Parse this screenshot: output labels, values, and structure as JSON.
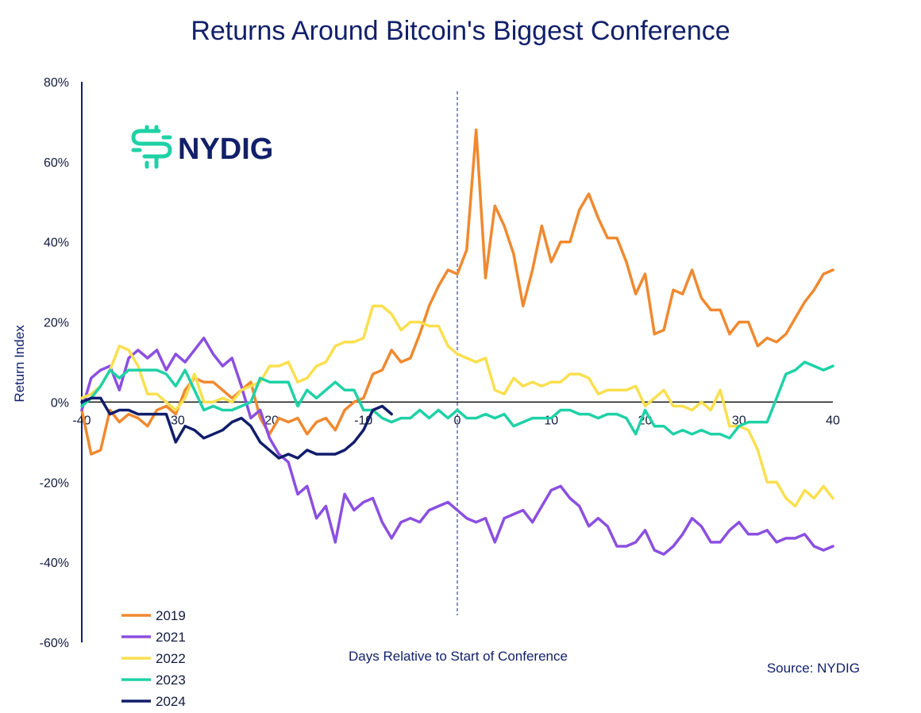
{
  "chart_data": {
    "type": "line",
    "title": "Returns Around Bitcoin's Biggest Conference",
    "xlabel": "Days Relative to Start of Conference",
    "ylabel": "Return Index",
    "xlim": [
      -40,
      40
    ],
    "ylim": [
      -60,
      80
    ],
    "x_ticks": [
      -40,
      -30,
      -20,
      -10,
      0,
      10,
      20,
      30,
      40
    ],
    "y_ticks": [
      80,
      60,
      40,
      20,
      0,
      -20,
      -40,
      -60
    ],
    "y_tick_labels": [
      "80%",
      "60%",
      "40%",
      "20%",
      "0%",
      "-20%",
      "-40%",
      "-60%"
    ],
    "reference_line_x": 0,
    "legend_position": "bottom-left",
    "source": "Source: NYDIG",
    "logo_text": "NYDIG",
    "series": [
      {
        "name": "2019",
        "color": "#f0892f",
        "x": [
          -40,
          -39,
          -38,
          -37,
          -36,
          -35,
          -34,
          -33,
          -32,
          -31,
          -30,
          -29,
          -28,
          -27,
          -26,
          -25,
          -24,
          -23,
          -22,
          -21,
          -20,
          -19,
          -18,
          -17,
          -16,
          -15,
          -14,
          -13,
          -12,
          -11,
          -10,
          -9,
          -8,
          -7,
          -6,
          -5,
          -4,
          -3,
          -2,
          -1,
          0,
          1,
          2,
          3,
          4,
          5,
          6,
          7,
          8,
          9,
          10,
          11,
          12,
          13,
          14,
          15,
          16,
          17,
          18,
          19,
          20,
          21,
          22,
          23,
          24,
          25,
          26,
          27,
          28,
          29,
          30,
          31,
          32,
          33,
          34,
          35,
          36,
          37,
          38,
          39,
          40
        ],
        "y": [
          -2,
          -13,
          -12,
          -2,
          -5,
          -3,
          -4,
          -6,
          -2,
          -1,
          -3,
          3,
          6,
          5,
          5,
          3,
          1,
          3,
          5,
          -4,
          -8,
          -4,
          -5,
          -4,
          -8,
          -5,
          -4,
          -7,
          -2,
          0,
          1,
          7,
          8,
          13,
          10,
          11,
          17,
          24,
          29,
          33,
          32,
          38,
          68,
          31,
          49,
          44,
          37,
          24,
          33,
          44,
          35,
          40,
          40,
          48,
          52,
          46,
          41,
          41,
          35,
          27,
          32,
          17,
          18,
          28,
          27,
          33,
          26,
          23,
          23,
          17,
          20,
          20,
          14,
          16,
          15,
          17,
          21,
          25,
          28,
          32,
          33
        ]
      },
      {
        "name": "2021",
        "color": "#8b4fe0",
        "x": [
          -40,
          -39,
          -38,
          -37,
          -36,
          -35,
          -34,
          -33,
          -32,
          -31,
          -30,
          -29,
          -28,
          -27,
          -26,
          -25,
          -24,
          -23,
          -22,
          -21,
          -20,
          -19,
          -18,
          -17,
          -16,
          -15,
          -14,
          -13,
          -12,
          -11,
          -10,
          -9,
          -8,
          -7,
          -6,
          -5,
          -4,
          -3,
          -2,
          -1,
          0,
          1,
          2,
          3,
          4,
          5,
          6,
          7,
          8,
          9,
          10,
          11,
          12,
          13,
          14,
          15,
          16,
          17,
          18,
          19,
          20,
          21,
          22,
          23,
          24,
          25,
          26,
          27,
          28,
          29,
          30,
          31,
          32,
          33,
          34,
          35,
          36,
          37,
          38,
          39,
          40
        ],
        "y": [
          -2,
          6,
          8,
          9,
          3,
          11,
          13,
          11,
          13,
          8,
          12,
          10,
          13,
          16,
          12,
          9,
          11,
          4,
          -4,
          -2,
          -9,
          -13,
          -15,
          -23,
          -21,
          -29,
          -26,
          -35,
          -23,
          -27,
          -25,
          -24,
          -30,
          -34,
          -30,
          -29,
          -30,
          -27,
          -26,
          -25,
          -27,
          -29,
          -30,
          -29,
          -35,
          -29,
          -28,
          -27,
          -30,
          -26,
          -22,
          -21,
          -24,
          -26,
          -31,
          -29,
          -31,
          -36,
          -36,
          -35,
          -32,
          -37,
          -38,
          -36,
          -33,
          -29,
          -31,
          -35,
          -35,
          -32,
          -30,
          -33,
          -33,
          -32,
          -35,
          -34,
          -34,
          -33,
          -36,
          -37,
          -36
        ]
      },
      {
        "name": "2022",
        "color": "#fadf4f",
        "x": [
          -40,
          -39,
          -38,
          -37,
          -36,
          -35,
          -34,
          -33,
          -32,
          -31,
          -30,
          -29,
          -28,
          -27,
          -26,
          -25,
          -24,
          -23,
          -22,
          -21,
          -20,
          -19,
          -18,
          -17,
          -16,
          -15,
          -14,
          -13,
          -12,
          -11,
          -10,
          -9,
          -8,
          -7,
          -6,
          -5,
          -4,
          -3,
          -2,
          -1,
          0,
          1,
          2,
          3,
          4,
          5,
          6,
          7,
          8,
          9,
          10,
          11,
          12,
          13,
          14,
          15,
          16,
          17,
          18,
          19,
          20,
          21,
          22,
          23,
          24,
          25,
          26,
          27,
          28,
          29,
          30,
          31,
          32,
          33,
          34,
          35,
          36,
          37,
          38,
          39,
          40
        ],
        "y": [
          1,
          2,
          4,
          8,
          14,
          13,
          9,
          2,
          2,
          0,
          -2,
          1,
          7,
          0,
          0,
          1,
          0,
          3,
          4,
          5,
          9,
          9,
          10,
          5,
          6,
          9,
          10,
          14,
          15,
          15,
          16,
          24,
          24,
          22,
          18,
          20,
          20,
          19,
          19,
          14,
          12,
          11,
          10,
          11,
          3,
          2,
          6,
          4,
          5,
          4,
          5,
          5,
          7,
          7,
          6,
          2,
          3,
          3,
          3,
          4,
          -1,
          1,
          3,
          -1,
          -1,
          -2,
          0,
          -2,
          3,
          -6,
          -6,
          -7,
          -12,
          -20,
          -20,
          -24,
          -26,
          -22,
          -24,
          -21,
          -24
        ]
      },
      {
        "name": "2023",
        "color": "#1fd1a6",
        "x": [
          -40,
          -39,
          -38,
          -37,
          -36,
          -35,
          -34,
          -33,
          -32,
          -31,
          -30,
          -29,
          -28,
          -27,
          -26,
          -25,
          -24,
          -23,
          -22,
          -21,
          -20,
          -19,
          -18,
          -17,
          -16,
          -15,
          -14,
          -13,
          -12,
          -11,
          -10,
          -9,
          -8,
          -7,
          -6,
          -5,
          -4,
          -3,
          -2,
          -1,
          0,
          1,
          2,
          3,
          4,
          5,
          6,
          7,
          8,
          9,
          10,
          11,
          12,
          13,
          14,
          15,
          16,
          17,
          18,
          19,
          20,
          21,
          22,
          23,
          24,
          25,
          26,
          27,
          28,
          29,
          30,
          31,
          32,
          33,
          34,
          35,
          36,
          37,
          38,
          39,
          40
        ],
        "y": [
          -1,
          1,
          4,
          8,
          6,
          8,
          8,
          8,
          8,
          7,
          4,
          8,
          3,
          -2,
          -1,
          -2,
          -2,
          -1,
          0,
          6,
          5,
          5,
          5,
          -1,
          3,
          1,
          3,
          5,
          3,
          3,
          -2,
          -2,
          -4,
          -5,
          -4,
          -4,
          -2,
          -4,
          -2,
          -4,
          -2,
          -4,
          -4,
          -3,
          -4,
          -3,
          -6,
          -5,
          -4,
          -4,
          -4,
          -2,
          -2,
          -3,
          -3,
          -4,
          -3,
          -3,
          -4,
          -8,
          -2,
          -6,
          -6,
          -8,
          -7,
          -8,
          -7,
          -8,
          -8,
          -9,
          -6,
          -5,
          -5,
          -5,
          1,
          7,
          8,
          10,
          9,
          8,
          9
        ]
      },
      {
        "name": "2024",
        "color": "#101d6a",
        "x": [
          -40,
          -39,
          -38,
          -37,
          -36,
          -35,
          -34,
          -33,
          -32,
          -31,
          -30,
          -29,
          -28,
          -27,
          -26,
          -25,
          -24,
          -23,
          -22,
          -21,
          -20,
          -19,
          -18,
          -17,
          -16,
          -15,
          -14,
          -13,
          -12,
          -11,
          -10,
          -9,
          -8,
          -7
        ],
        "y": [
          0,
          1,
          1,
          -3,
          -2,
          -2,
          -3,
          -3,
          -3,
          -3,
          -10,
          -6,
          -7,
          -9,
          -8,
          -7,
          -5,
          -4,
          -6,
          -10,
          -12,
          -14,
          -13,
          -14,
          -12,
          -13,
          -13,
          -13,
          -12,
          -10,
          -7,
          -2,
          -1,
          -3
        ]
      }
    ]
  }
}
